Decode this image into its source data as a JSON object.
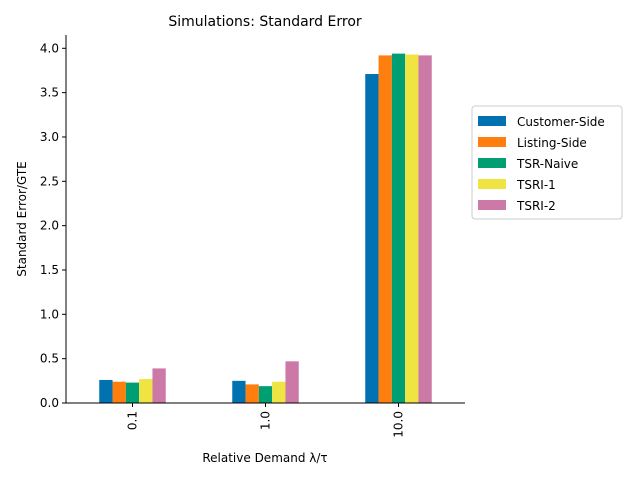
{
  "chart_data": {
    "type": "bar",
    "title": "Simulations: Standard Error",
    "xlabel": "Relative Demand λ/τ",
    "ylabel": "Standard Error/GTE",
    "categories": [
      "0.1",
      "1.0",
      "10.0"
    ],
    "ylim": [
      0,
      4.15
    ],
    "yticks": [
      "0.0",
      "0.5",
      "1.0",
      "1.5",
      "2.0",
      "2.5",
      "3.0",
      "3.5",
      "4.0"
    ],
    "legend_position": "right",
    "grid": false,
    "series": [
      {
        "name": "Customer-Side",
        "color": "#0072b2",
        "values": [
          0.26,
          0.25,
          3.71
        ]
      },
      {
        "name": "Listing-Side",
        "color": "#ff7f0e",
        "values": [
          0.24,
          0.21,
          3.92
        ]
      },
      {
        "name": "TSR-Naive",
        "color": "#009e73",
        "values": [
          0.23,
          0.19,
          3.94
        ]
      },
      {
        "name": "TSRI-1",
        "color": "#f0e442",
        "values": [
          0.27,
          0.24,
          3.93
        ]
      },
      {
        "name": "TSRI-2",
        "color": "#cc79a7",
        "values": [
          0.39,
          0.47,
          3.92
        ]
      }
    ]
  }
}
